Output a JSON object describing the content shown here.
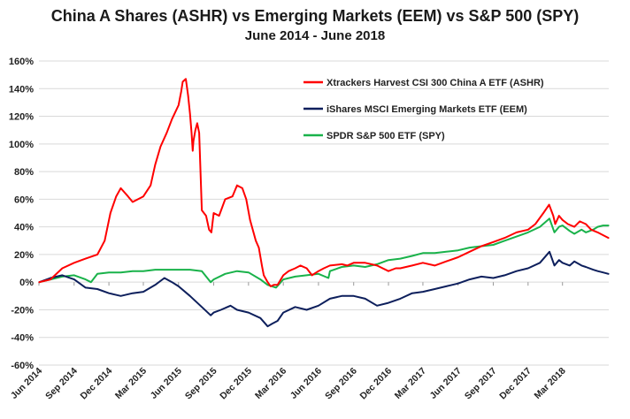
{
  "chart_data": {
    "type": "line",
    "title": "China A Shares (ASHR) vs Emerging Markets (EEM) vs S&P 500 (SPY)",
    "subtitle": "June 2014 - June 2018",
    "ylim": [
      -0.6,
      1.6
    ],
    "y_ticks": [
      1.6,
      1.4,
      1.2,
      1.0,
      0.8,
      0.6,
      0.4,
      0.2,
      0.0,
      -0.2,
      -0.4,
      -0.6
    ],
    "y_tick_labels": [
      "160%",
      "140%",
      "120%",
      "100%",
      "80%",
      "60%",
      "40%",
      "20%",
      "0%",
      "-20%",
      "-40%",
      "-60%"
    ],
    "x_range": [
      "2014-06-01",
      "2018-06-30"
    ],
    "x_tick_labels": [
      "Jun 2014",
      "Sep 2014",
      "Dec 2014",
      "Mar 2015",
      "Jun 2015",
      "Sep 2015",
      "Dec 2015",
      "Mar 2016",
      "Jun 2016",
      "Sep 2016",
      "Dec 2016",
      "Mar 2017",
      "Jun 2017",
      "Sep 2017",
      "Dec 2017",
      "Mar 2018"
    ],
    "x_tick_dates": [
      "2014-06-01",
      "2014-09-01",
      "2014-12-01",
      "2015-03-01",
      "2015-06-01",
      "2015-09-01",
      "2015-12-01",
      "2016-03-01",
      "2016-06-01",
      "2016-09-01",
      "2016-12-01",
      "2017-03-01",
      "2017-06-01",
      "2017-09-01",
      "2017-12-01",
      "2018-03-01"
    ],
    "grid": "horizontal",
    "legend": "top-right",
    "series": [
      {
        "name": "Xtrackers Harvest CSI 300 China A ETF (ASHR)",
        "color": "#ff0000",
        "x": [
          "2014-06-02",
          "2014-07-01",
          "2014-08-01",
          "2014-09-01",
          "2014-10-01",
          "2014-11-01",
          "2014-11-20",
          "2014-12-05",
          "2014-12-20",
          "2015-01-01",
          "2015-01-20",
          "2015-02-01",
          "2015-03-01",
          "2015-03-20",
          "2015-04-01",
          "2015-04-15",
          "2015-05-01",
          "2015-05-15",
          "2015-06-01",
          "2015-06-08",
          "2015-06-12",
          "2015-06-20",
          "2015-06-26",
          "2015-07-01",
          "2015-07-05",
          "2015-07-08",
          "2015-07-10",
          "2015-07-15",
          "2015-07-20",
          "2015-07-25",
          "2015-08-01",
          "2015-08-12",
          "2015-08-20",
          "2015-08-26",
          "2015-09-01",
          "2015-09-15",
          "2015-10-01",
          "2015-10-20",
          "2015-11-01",
          "2015-11-15",
          "2015-11-25",
          "2015-12-05",
          "2015-12-20",
          "2015-12-28",
          "2016-01-05",
          "2016-01-10",
          "2016-01-20",
          "2016-01-28",
          "2016-02-05",
          "2016-02-15",
          "2016-03-01",
          "2016-03-15",
          "2016-04-01",
          "2016-04-15",
          "2016-05-01",
          "2016-05-15",
          "2016-06-01",
          "2016-06-15",
          "2016-07-01",
          "2016-08-01",
          "2016-08-15",
          "2016-09-01",
          "2016-10-01",
          "2016-11-01",
          "2016-12-01",
          "2016-12-20",
          "2017-01-01",
          "2017-02-01",
          "2017-03-01",
          "2017-04-01",
          "2017-05-01",
          "2017-06-01",
          "2017-07-01",
          "2017-08-01",
          "2017-09-01",
          "2017-10-01",
          "2017-11-01",
          "2017-12-01",
          "2017-12-20",
          "2018-01-10",
          "2018-01-25",
          "2018-02-05",
          "2018-02-10",
          "2018-02-20",
          "2018-03-01",
          "2018-03-15",
          "2018-04-01",
          "2018-04-15",
          "2018-05-01",
          "2018-05-15",
          "2018-06-01",
          "2018-06-15",
          "2018-06-29"
        ],
        "y": [
          0.0,
          0.02,
          0.1,
          0.14,
          0.17,
          0.2,
          0.3,
          0.5,
          0.62,
          0.68,
          0.62,
          0.58,
          0.62,
          0.7,
          0.85,
          0.98,
          1.08,
          1.18,
          1.28,
          1.38,
          1.45,
          1.47,
          1.35,
          1.22,
          1.08,
          0.95,
          1.02,
          1.1,
          1.15,
          1.08,
          0.52,
          0.48,
          0.38,
          0.36,
          0.5,
          0.48,
          0.6,
          0.62,
          0.7,
          0.68,
          0.6,
          0.45,
          0.3,
          0.25,
          0.12,
          0.05,
          0.0,
          -0.03,
          -0.02,
          -0.02,
          0.05,
          0.08,
          0.1,
          0.12,
          0.1,
          0.05,
          0.08,
          0.1,
          0.12,
          0.13,
          0.12,
          0.14,
          0.14,
          0.12,
          0.08,
          0.1,
          0.1,
          0.12,
          0.14,
          0.12,
          0.15,
          0.18,
          0.22,
          0.26,
          0.29,
          0.32,
          0.36,
          0.38,
          0.42,
          0.5,
          0.56,
          0.48,
          0.42,
          0.48,
          0.45,
          0.42,
          0.4,
          0.44,
          0.42,
          0.38,
          0.36,
          0.34,
          0.32
        ]
      },
      {
        "name": "iShares MSCI Emerging Markets ETF (EEM)",
        "color": "#0d1f5c",
        "x": [
          "2014-06-02",
          "2014-07-01",
          "2014-08-01",
          "2014-09-01",
          "2014-10-01",
          "2014-11-01",
          "2014-12-01",
          "2015-01-01",
          "2015-02-01",
          "2015-03-01",
          "2015-04-01",
          "2015-04-25",
          "2015-05-15",
          "2015-06-01",
          "2015-07-01",
          "2015-08-01",
          "2015-08-24",
          "2015-09-01",
          "2015-09-20",
          "2015-10-15",
          "2015-11-01",
          "2015-12-01",
          "2016-01-01",
          "2016-01-20",
          "2016-02-01",
          "2016-02-15",
          "2016-03-01",
          "2016-04-01",
          "2016-05-01",
          "2016-06-01",
          "2016-07-01",
          "2016-08-01",
          "2016-09-01",
          "2016-10-01",
          "2016-11-01",
          "2016-12-01",
          "2017-01-01",
          "2017-02-01",
          "2017-03-01",
          "2017-04-01",
          "2017-05-01",
          "2017-06-01",
          "2017-07-01",
          "2017-08-01",
          "2017-09-01",
          "2017-10-01",
          "2017-11-01",
          "2017-12-01",
          "2018-01-01",
          "2018-01-26",
          "2018-02-08",
          "2018-02-20",
          "2018-03-01",
          "2018-03-20",
          "2018-04-01",
          "2018-04-20",
          "2018-05-01",
          "2018-05-20",
          "2018-06-01",
          "2018-06-15",
          "2018-06-29"
        ],
        "y": [
          0.0,
          0.03,
          0.05,
          0.02,
          -0.04,
          -0.05,
          -0.08,
          -0.1,
          -0.08,
          -0.07,
          -0.02,
          0.03,
          0.0,
          -0.03,
          -0.1,
          -0.18,
          -0.24,
          -0.22,
          -0.2,
          -0.17,
          -0.2,
          -0.22,
          -0.26,
          -0.32,
          -0.3,
          -0.28,
          -0.22,
          -0.18,
          -0.2,
          -0.17,
          -0.12,
          -0.1,
          -0.1,
          -0.12,
          -0.17,
          -0.15,
          -0.12,
          -0.08,
          -0.07,
          -0.05,
          -0.03,
          -0.01,
          0.02,
          0.04,
          0.03,
          0.05,
          0.08,
          0.1,
          0.14,
          0.22,
          0.12,
          0.16,
          0.14,
          0.12,
          0.15,
          0.12,
          0.11,
          0.09,
          0.08,
          0.07,
          0.06
        ]
      },
      {
        "name": "SPDR S&P 500 ETF (SPY)",
        "color": "#19b24a",
        "x": [
          "2014-06-02",
          "2014-07-01",
          "2014-08-01",
          "2014-09-01",
          "2014-10-01",
          "2014-10-15",
          "2014-11-01",
          "2014-12-01",
          "2015-01-01",
          "2015-02-01",
          "2015-03-01",
          "2015-04-01",
          "2015-05-01",
          "2015-06-01",
          "2015-07-01",
          "2015-08-01",
          "2015-08-24",
          "2015-09-01",
          "2015-10-01",
          "2015-11-01",
          "2015-12-01",
          "2016-01-01",
          "2016-01-20",
          "2016-02-11",
          "2016-03-01",
          "2016-04-01",
          "2016-05-01",
          "2016-06-01",
          "2016-06-27",
          "2016-07-01",
          "2016-08-01",
          "2016-09-01",
          "2016-10-01",
          "2016-11-01",
          "2016-12-01",
          "2017-01-01",
          "2017-02-01",
          "2017-03-01",
          "2017-04-01",
          "2017-05-01",
          "2017-06-01",
          "2017-07-01",
          "2017-08-01",
          "2017-09-01",
          "2017-10-01",
          "2017-11-01",
          "2017-12-01",
          "2018-01-01",
          "2018-01-26",
          "2018-02-08",
          "2018-02-20",
          "2018-03-01",
          "2018-03-20",
          "2018-04-01",
          "2018-04-20",
          "2018-05-01",
          "2018-05-20",
          "2018-06-01",
          "2018-06-15",
          "2018-06-29"
        ],
        "y": [
          0.0,
          0.02,
          0.04,
          0.05,
          0.02,
          0.0,
          0.06,
          0.07,
          0.07,
          0.08,
          0.08,
          0.09,
          0.09,
          0.09,
          0.09,
          0.08,
          0.0,
          0.02,
          0.06,
          0.08,
          0.07,
          0.02,
          -0.02,
          -0.04,
          0.02,
          0.04,
          0.05,
          0.06,
          0.03,
          0.08,
          0.11,
          0.12,
          0.11,
          0.13,
          0.16,
          0.17,
          0.19,
          0.21,
          0.21,
          0.22,
          0.23,
          0.25,
          0.26,
          0.27,
          0.3,
          0.33,
          0.36,
          0.4,
          0.46,
          0.36,
          0.4,
          0.41,
          0.37,
          0.35,
          0.38,
          0.36,
          0.38,
          0.4,
          0.41,
          0.41
        ]
      }
    ]
  }
}
